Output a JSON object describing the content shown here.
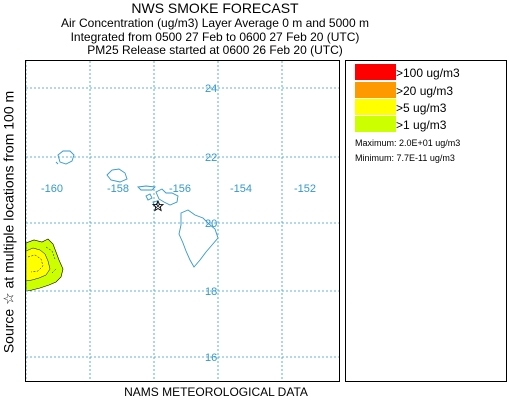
{
  "header": {
    "title": "NWS SMOKE FORECAST",
    "line1": "Air Concentration (ug/m3) Layer Average    0 m and  5000 m",
    "line2": "Integrated from 0500 27 Feb to 0600 27 Feb 20 (UTC)",
    "line3": "PM25 Release started at 0600 26 Feb 20 (UTC)"
  },
  "side_label": "Source ☆    at multiple locations      from  100 m",
  "footer": "NAMS METEOROLOGICAL DATA",
  "map": {
    "lat_labels": [
      "24",
      "22",
      "20",
      "18",
      "16"
    ],
    "lon_labels": [
      "-160",
      "-158",
      "-156",
      "-154",
      "-152"
    ],
    "source_marker": "star-icon"
  },
  "legend": {
    "items": [
      {
        "label": ">100 ug/m3",
        "color": "#ff0000"
      },
      {
        "label": ">20 ug/m3",
        "color": "#ff9900"
      },
      {
        "label": ">5 ug/m3",
        "color": "#ffff00"
      },
      {
        "label": ">1 ug/m3",
        "color": "#ccff00"
      }
    ],
    "maximum": "Maximum: 2.0E+01 ug/m3",
    "minimum": "Minimum: 7.7E-11 ug/m3"
  },
  "colors": {
    "grid": "#3399cc",
    "coastline": "#3399cc",
    "plume_outer": "#ccff00",
    "plume_inner": "#ffff00",
    "contour": "#000000"
  }
}
